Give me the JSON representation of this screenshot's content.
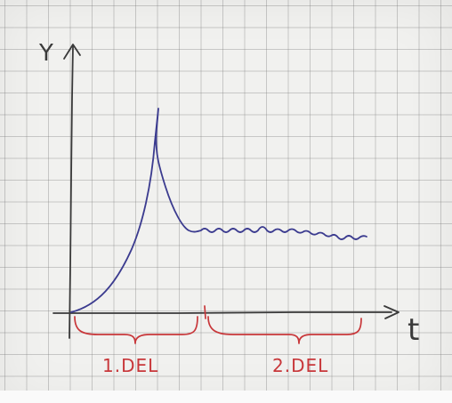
{
  "diagram": {
    "y_axis_label": "Y",
    "x_axis_label": "t",
    "segments": [
      {
        "label": "1.DEL"
      },
      {
        "label": "2.DEL"
      }
    ],
    "colors": {
      "paper": "#f1f1ef",
      "grid": "#8a8a8a",
      "axes": "#3a3a3a",
      "curve": "#3b3b8f",
      "annotation": "#c8373a"
    }
  }
}
